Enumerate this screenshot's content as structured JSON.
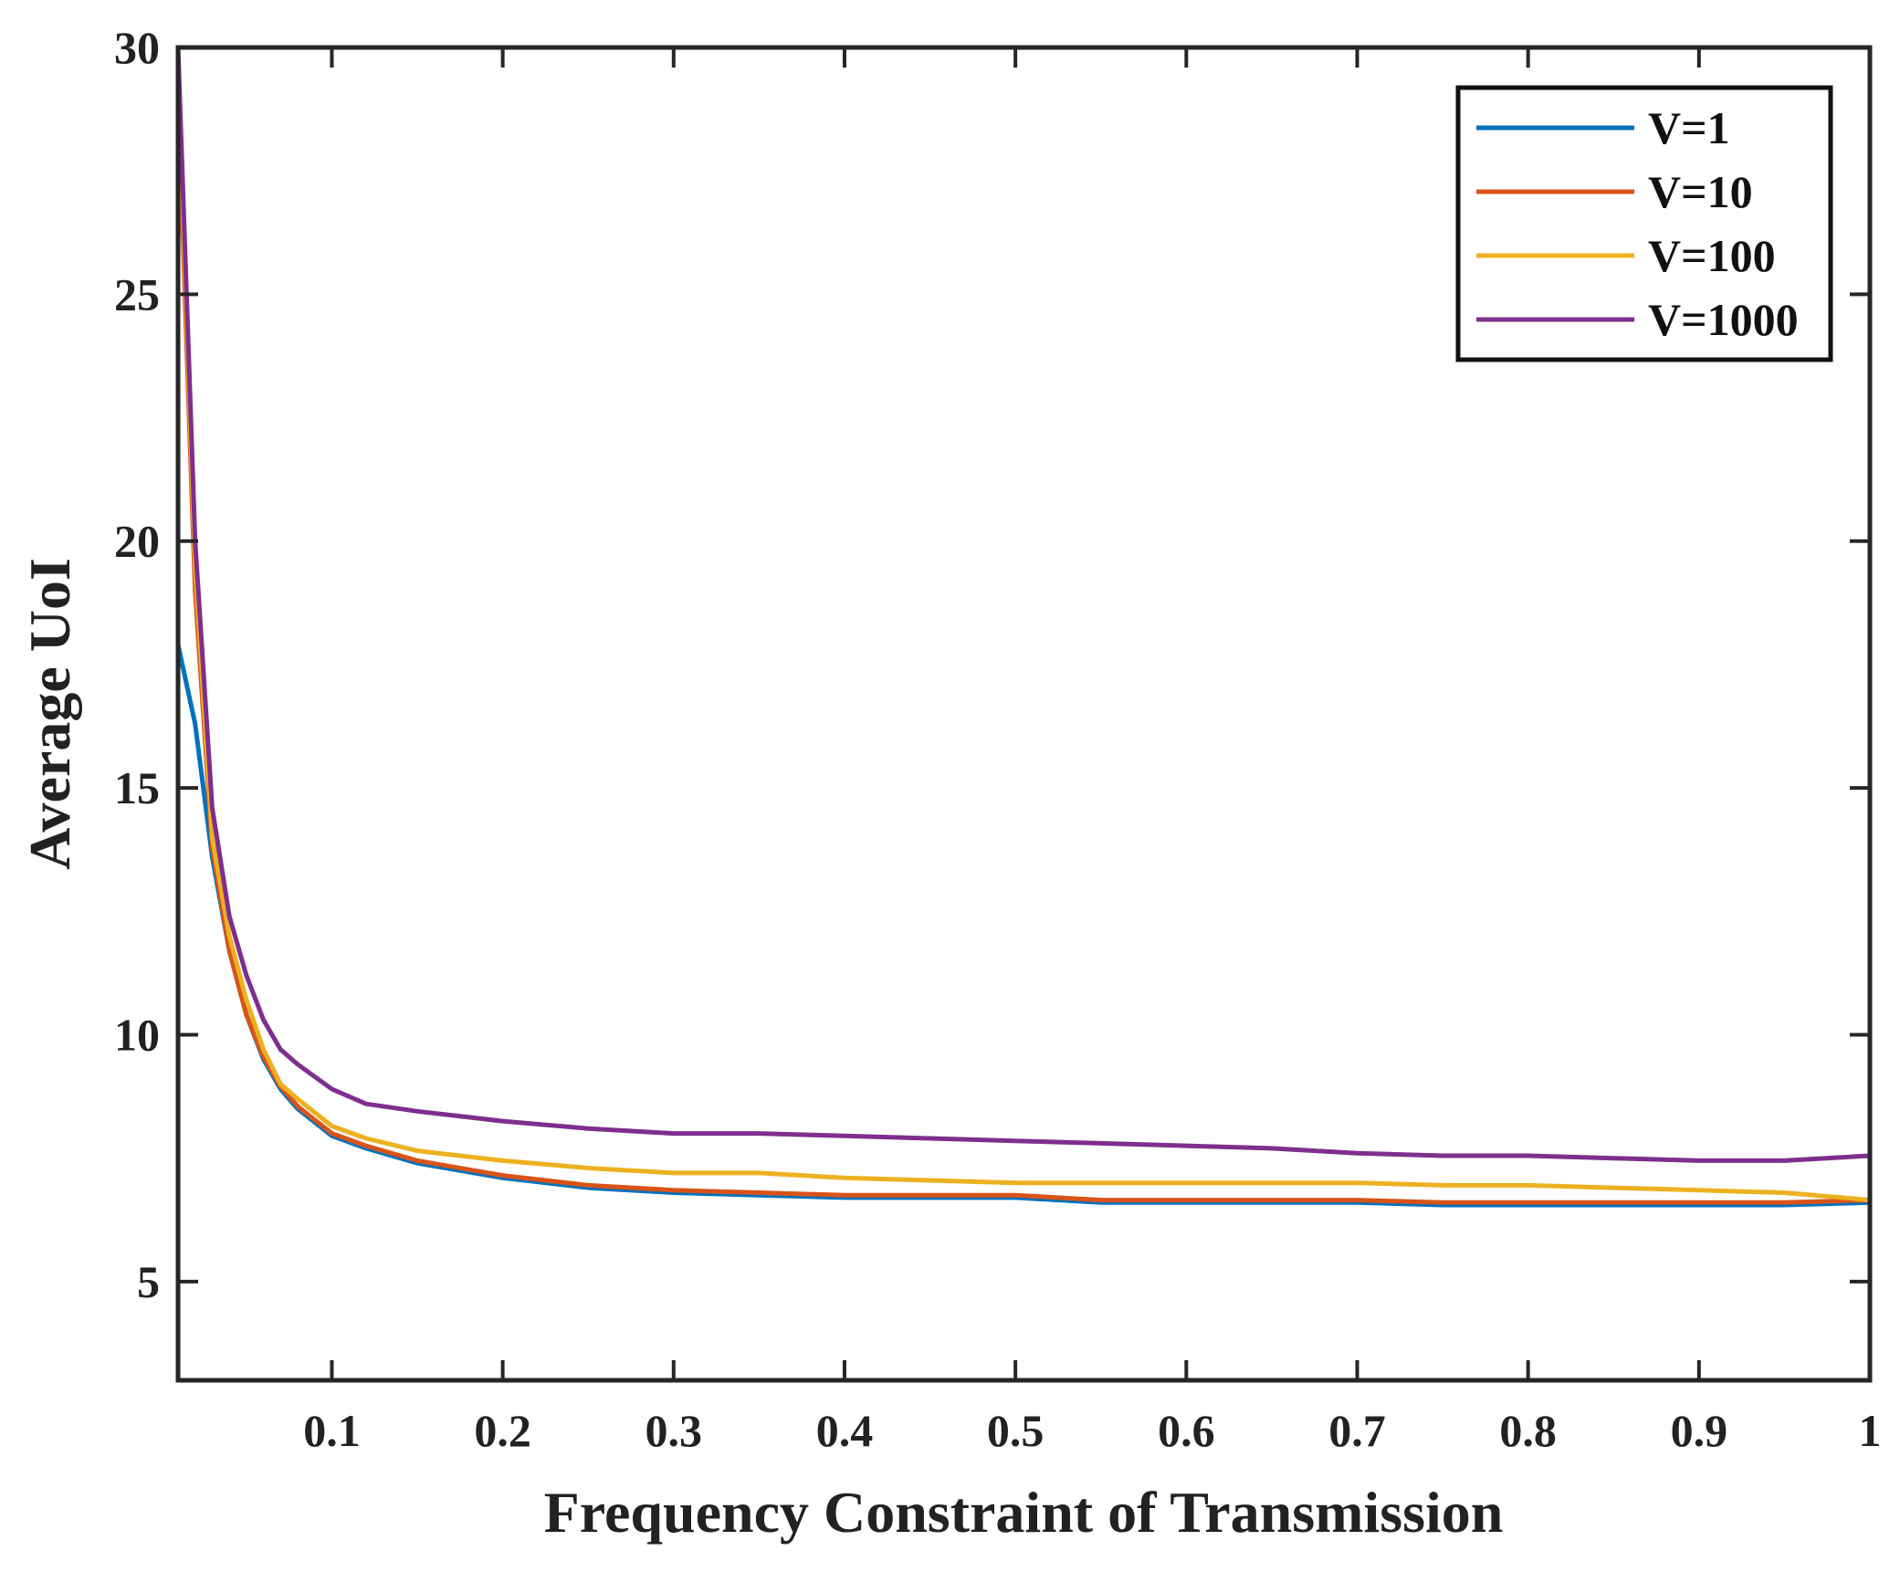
{
  "chart_data": {
    "type": "line",
    "title": "",
    "xlabel": "Frequency Constraint of Transmission",
    "ylabel": "Average UoI",
    "xlim": [
      0.01,
      1
    ],
    "ylim": [
      3,
      30
    ],
    "xticks": [
      0.1,
      0.2,
      0.3,
      0.4,
      0.5,
      0.6,
      0.7,
      0.8,
      0.9,
      1
    ],
    "xtick_labels": [
      "0.1",
      "0.2",
      "0.3",
      "0.4",
      "0.5",
      "0.6",
      "0.7",
      "0.8",
      "0.9",
      "1"
    ],
    "yticks": [
      5,
      10,
      15,
      20,
      25,
      30
    ],
    "ytick_labels": [
      "5",
      "10",
      "15",
      "20",
      "25",
      "30"
    ],
    "grid": false,
    "legend_position": "top-right",
    "series": [
      {
        "name": "V=1",
        "color": "#0072BD",
        "x": [
          0.01,
          0.02,
          0.03,
          0.04,
          0.05,
          0.06,
          0.07,
          0.08,
          0.1,
          0.12,
          0.15,
          0.2,
          0.25,
          0.3,
          0.35,
          0.4,
          0.45,
          0.5,
          0.55,
          0.6,
          0.65,
          0.7,
          0.75,
          0.8,
          0.85,
          0.9,
          0.95,
          1.0
        ],
        "y": [
          17.9,
          16.3,
          13.6,
          11.7,
          10.4,
          9.5,
          8.9,
          8.5,
          7.95,
          7.7,
          7.4,
          7.1,
          6.9,
          6.8,
          6.75,
          6.7,
          6.7,
          6.7,
          6.6,
          6.6,
          6.6,
          6.6,
          6.55,
          6.55,
          6.55,
          6.55,
          6.55,
          6.6
        ]
      },
      {
        "name": "V=10",
        "color": "#D95319",
        "x": [
          0.01,
          0.02,
          0.03,
          0.04,
          0.05,
          0.06,
          0.07,
          0.08,
          0.1,
          0.12,
          0.15,
          0.2,
          0.25,
          0.3,
          0.35,
          0.4,
          0.45,
          0.5,
          0.55,
          0.6,
          0.65,
          0.7,
          0.75,
          0.8,
          0.85,
          0.9,
          0.95,
          1.0
        ],
        "y": [
          29.0,
          19.0,
          13.8,
          11.7,
          10.4,
          9.55,
          8.95,
          8.55,
          8.0,
          7.75,
          7.45,
          7.15,
          6.95,
          6.85,
          6.8,
          6.75,
          6.75,
          6.75,
          6.65,
          6.65,
          6.65,
          6.65,
          6.6,
          6.6,
          6.6,
          6.6,
          6.6,
          6.65
        ]
      },
      {
        "name": "V=100",
        "color": "#EDB120",
        "x": [
          0.01,
          0.02,
          0.03,
          0.04,
          0.05,
          0.06,
          0.07,
          0.08,
          0.1,
          0.12,
          0.15,
          0.2,
          0.25,
          0.3,
          0.35,
          0.4,
          0.45,
          0.5,
          0.55,
          0.6,
          0.65,
          0.7,
          0.75,
          0.8,
          0.85,
          0.9,
          0.95,
          1.0
        ],
        "y": [
          29.5,
          19.5,
          14.0,
          12.0,
          10.7,
          9.7,
          9.0,
          8.7,
          8.15,
          7.9,
          7.65,
          7.45,
          7.3,
          7.2,
          7.2,
          7.1,
          7.05,
          7.0,
          7.0,
          7.0,
          7.0,
          7.0,
          6.95,
          6.95,
          6.9,
          6.85,
          6.8,
          6.65
        ]
      },
      {
        "name": "V=1000",
        "color": "#7E2F8E",
        "x": [
          0.01,
          0.02,
          0.03,
          0.04,
          0.05,
          0.06,
          0.07,
          0.08,
          0.1,
          0.12,
          0.15,
          0.2,
          0.25,
          0.3,
          0.35,
          0.4,
          0.45,
          0.5,
          0.55,
          0.6,
          0.65,
          0.7,
          0.75,
          0.8,
          0.85,
          0.9,
          0.95,
          1.0
        ],
        "y": [
          30.0,
          20.0,
          14.6,
          12.4,
          11.2,
          10.3,
          9.7,
          9.4,
          8.9,
          8.6,
          8.45,
          8.25,
          8.1,
          8.0,
          8.0,
          7.95,
          7.9,
          7.85,
          7.8,
          7.75,
          7.7,
          7.6,
          7.55,
          7.55,
          7.5,
          7.45,
          7.45,
          7.55
        ]
      }
    ]
  }
}
